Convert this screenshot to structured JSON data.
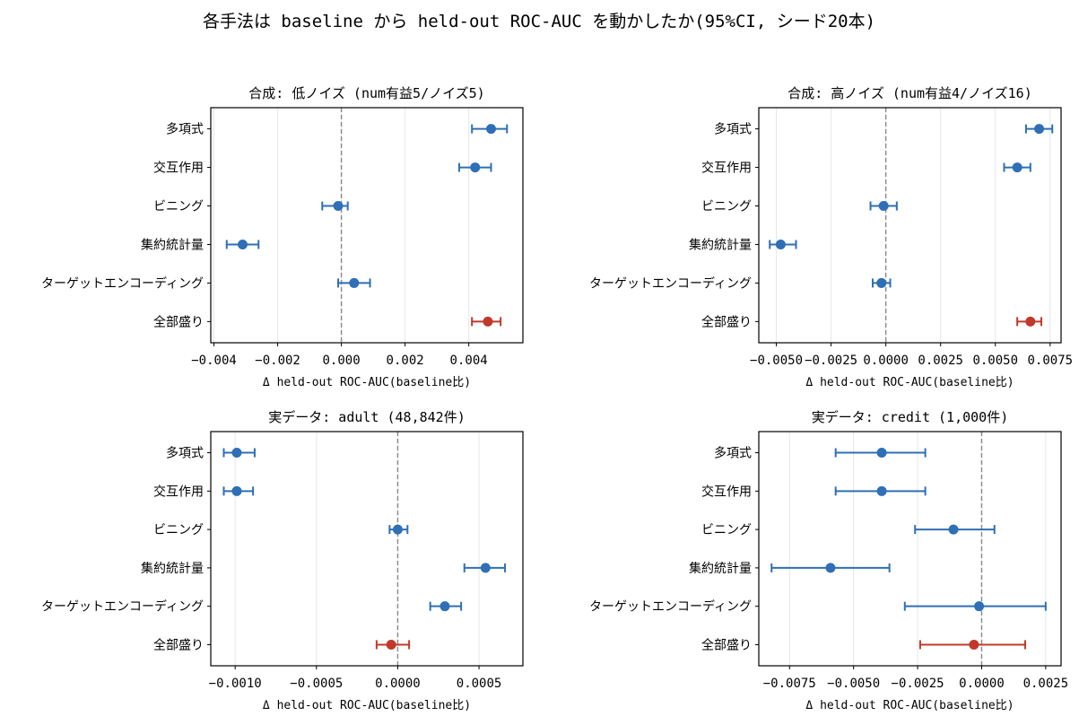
{
  "figure": {
    "title": "各手法は baseline から held-out ROC-AUC を動かしたか(95%CI, シード20本)"
  },
  "colors": {
    "method": "#2f6fb5",
    "combined": "#c0392b",
    "zero_line": "#888888",
    "grid": "#e6e6e6"
  },
  "chart_data": [
    {
      "type": "scatter",
      "title": "合成: 低ノイズ (num有益5/ノイズ5)",
      "xlabel": "Δ held-out ROC-AUC(baseline比)",
      "categories": [
        "多項式",
        "交互作用",
        "ビニング",
        "集約統計量",
        "ターゲットエンコーディング",
        "全部盛り"
      ],
      "estimate": [
        0.0047,
        0.0042,
        -0.0001,
        -0.0031,
        0.0004,
        0.0046
      ],
      "ci_low": [
        0.0041,
        0.0037,
        -0.0006,
        -0.0036,
        -0.0001,
        0.0041
      ],
      "ci_high": [
        0.0052,
        0.0047,
        0.0002,
        -0.0026,
        0.0009,
        0.005
      ],
      "highlight": [
        false,
        false,
        false,
        false,
        false,
        true
      ],
      "xlim": [
        -0.0041,
        0.0057
      ],
      "xticks": [
        -0.004,
        -0.002,
        0.0,
        0.002,
        0.004
      ],
      "xtick_labels": [
        "−0.004",
        "−0.002",
        "0.000",
        "0.002",
        "0.004"
      ],
      "grid": "vertical"
    },
    {
      "type": "scatter",
      "title": "合成: 高ノイズ (num有益4/ノイズ16)",
      "xlabel": "Δ held-out ROC-AUC(baseline比)",
      "categories": [
        "多項式",
        "交互作用",
        "ビニング",
        "集約統計量",
        "ターゲットエンコーディング",
        "全部盛り"
      ],
      "estimate": [
        0.007,
        0.006,
        -0.0001,
        -0.0048,
        -0.0002,
        0.0066
      ],
      "ci_low": [
        0.0064,
        0.0054,
        -0.0007,
        -0.0053,
        -0.0006,
        0.006
      ],
      "ci_high": [
        0.0076,
        0.0066,
        0.0005,
        -0.0041,
        0.0002,
        0.0071
      ],
      "highlight": [
        false,
        false,
        false,
        false,
        false,
        true
      ],
      "xlim": [
        -0.0058,
        0.008
      ],
      "xticks": [
        -0.005,
        -0.0025,
        0.0,
        0.0025,
        0.005,
        0.0075
      ],
      "xtick_labels": [
        "−0.0050",
        "−0.0025",
        "0.0000",
        "0.0025",
        "0.0050",
        "0.0075"
      ],
      "grid": "vertical"
    },
    {
      "type": "scatter",
      "title": "実データ: adult (48,842件)",
      "xlabel": "Δ held-out ROC-AUC(baseline比)",
      "categories": [
        "多項式",
        "交互作用",
        "ビニング",
        "集約統計量",
        "ターゲットエンコーディング",
        "全部盛り"
      ],
      "estimate": [
        -0.00099,
        -0.00099,
        0.0,
        0.00054,
        0.00029,
        -4e-05
      ],
      "ci_low": [
        -0.00107,
        -0.00107,
        -5e-05,
        0.00041,
        0.0002,
        -0.00013
      ],
      "ci_high": [
        -0.00088,
        -0.00089,
        6e-05,
        0.00066,
        0.00039,
        7e-05
      ],
      "highlight": [
        false,
        false,
        false,
        false,
        false,
        true
      ],
      "xlim": [
        -0.00115,
        0.00077
      ],
      "xticks": [
        -0.001,
        -0.0005,
        0.0,
        0.0005
      ],
      "xtick_labels": [
        "−0.0010",
        "−0.0005",
        "0.0000",
        "0.0005"
      ],
      "grid": "vertical"
    },
    {
      "type": "scatter",
      "title": "実データ: credit (1,000件)",
      "xlabel": "Δ held-out ROC-AUC(baseline比)",
      "categories": [
        "多項式",
        "交互作用",
        "ビニング",
        "集約統計量",
        "ターゲットエンコーディング",
        "全部盛り"
      ],
      "estimate": [
        -0.0039,
        -0.0039,
        -0.0011,
        -0.0059,
        -0.0001,
        -0.0003
      ],
      "ci_low": [
        -0.0057,
        -0.0057,
        -0.0026,
        -0.0082,
        -0.003,
        -0.0024
      ],
      "ci_high": [
        -0.0022,
        -0.0022,
        0.0005,
        -0.0036,
        0.0025,
        0.0017
      ],
      "highlight": [
        false,
        false,
        false,
        false,
        false,
        true
      ],
      "xlim": [
        -0.0087,
        0.0031
      ],
      "xticks": [
        -0.0075,
        -0.005,
        -0.0025,
        0.0,
        0.0025
      ],
      "xtick_labels": [
        "−0.0075",
        "−0.0050",
        "−0.0025",
        "0.0000",
        "0.0025"
      ],
      "grid": "vertical"
    }
  ]
}
